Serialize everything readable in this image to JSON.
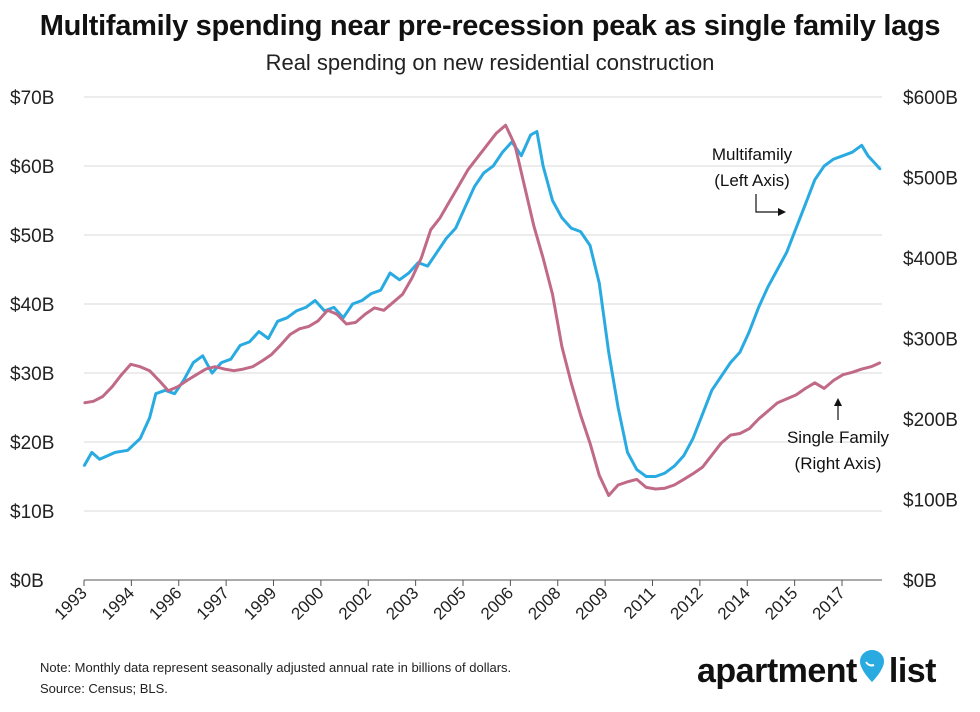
{
  "title": "Multifamily spending near pre-recession peak as single family lags",
  "subtitle": "Real spending on new residential construction",
  "note": "Note: Monthly data represent seasonally adjusted annual rate in billions of dollars.",
  "source": "Source: Census; BLS.",
  "logo": {
    "text_left": "apartment",
    "text_right": "list",
    "pin_color": "#29abe2"
  },
  "colors": {
    "multifamily": "#29abe2",
    "single_family": "#c06a88",
    "grid": "#d9d9d9",
    "axis": "#555555"
  },
  "chart_data": {
    "type": "line",
    "x_tick_labels": [
      "1993",
      "1994",
      "1996",
      "1997",
      "1999",
      "2000",
      "2002",
      "2003",
      "2005",
      "2006",
      "2008",
      "2009",
      "2011",
      "2012",
      "2014",
      "2015",
      "2017"
    ],
    "left_axis": {
      "ylim": [
        0,
        70
      ],
      "ticks": [
        0,
        10,
        20,
        30,
        40,
        50,
        60,
        70
      ],
      "tick_labels": [
        "$0B",
        "$10B",
        "$20B",
        "$30B",
        "$40B",
        "$50B",
        "$60B",
        "$70B"
      ]
    },
    "right_axis": {
      "ylim": [
        0,
        600
      ],
      "ticks": [
        0,
        100,
        200,
        300,
        400,
        500,
        600
      ],
      "tick_labels": [
        "$0B",
        "$100B",
        "$200B",
        "$300B",
        "$400B",
        "$500B",
        "$600B"
      ]
    },
    "grid": "horizontal",
    "annotations": [
      {
        "text_lines": [
          "Multifamily",
          "(Left Axis)"
        ],
        "target_series": "multifamily"
      },
      {
        "text_lines": [
          "Single Family",
          "(Right Axis)"
        ],
        "target_series": "single_family"
      }
    ],
    "series": [
      {
        "name": "Multifamily",
        "key": "multifamily",
        "axis": "left",
        "points": [
          [
            1993.0,
            16.5
          ],
          [
            1993.25,
            18.5
          ],
          [
            1993.5,
            17.5
          ],
          [
            1994.0,
            18.5
          ],
          [
            1994.4,
            18.8
          ],
          [
            1994.8,
            20.5
          ],
          [
            1995.1,
            23.5
          ],
          [
            1995.3,
            27.0
          ],
          [
            1995.6,
            27.5
          ],
          [
            1995.9,
            27.0
          ],
          [
            1996.2,
            29.0
          ],
          [
            1996.5,
            31.5
          ],
          [
            1996.8,
            32.5
          ],
          [
            1997.1,
            30.0
          ],
          [
            1997.4,
            31.5
          ],
          [
            1997.7,
            32.0
          ],
          [
            1998.0,
            34.0
          ],
          [
            1998.3,
            34.5
          ],
          [
            1998.6,
            36.0
          ],
          [
            1998.9,
            35.0
          ],
          [
            1999.2,
            37.5
          ],
          [
            1999.5,
            38.0
          ],
          [
            1999.8,
            39.0
          ],
          [
            2000.1,
            39.5
          ],
          [
            2000.4,
            40.5
          ],
          [
            2000.7,
            39.0
          ],
          [
            2001.0,
            39.5
          ],
          [
            2001.3,
            38.0
          ],
          [
            2001.6,
            40.0
          ],
          [
            2001.9,
            40.5
          ],
          [
            2002.2,
            41.5
          ],
          [
            2002.5,
            42.0
          ],
          [
            2002.8,
            44.5
          ],
          [
            2003.1,
            43.5
          ],
          [
            2003.4,
            44.5
          ],
          [
            2003.7,
            46.0
          ],
          [
            2004.0,
            45.5
          ],
          [
            2004.3,
            47.5
          ],
          [
            2004.6,
            49.5
          ],
          [
            2004.9,
            51.0
          ],
          [
            2005.2,
            54.0
          ],
          [
            2005.5,
            57.0
          ],
          [
            2005.8,
            59.0
          ],
          [
            2006.1,
            60.0
          ],
          [
            2006.4,
            62.0
          ],
          [
            2006.7,
            63.5
          ],
          [
            2007.0,
            61.5
          ],
          [
            2007.3,
            64.5
          ],
          [
            2007.5,
            65.0
          ],
          [
            2007.7,
            60.0
          ],
          [
            2008.0,
            55.0
          ],
          [
            2008.3,
            52.5
          ],
          [
            2008.6,
            51.0
          ],
          [
            2008.9,
            50.5
          ],
          [
            2009.2,
            48.5
          ],
          [
            2009.5,
            43.0
          ],
          [
            2009.8,
            33.0
          ],
          [
            2010.1,
            25.0
          ],
          [
            2010.4,
            18.5
          ],
          [
            2010.7,
            16.0
          ],
          [
            2011.0,
            15.0
          ],
          [
            2011.3,
            15.0
          ],
          [
            2011.6,
            15.5
          ],
          [
            2011.9,
            16.5
          ],
          [
            2012.2,
            18.0
          ],
          [
            2012.5,
            20.5
          ],
          [
            2012.8,
            24.0
          ],
          [
            2013.1,
            27.5
          ],
          [
            2013.4,
            29.5
          ],
          [
            2013.7,
            31.5
          ],
          [
            2014.0,
            33.0
          ],
          [
            2014.3,
            36.0
          ],
          [
            2014.6,
            39.5
          ],
          [
            2014.9,
            42.5
          ],
          [
            2015.2,
            45.0
          ],
          [
            2015.5,
            47.5
          ],
          [
            2015.8,
            51.0
          ],
          [
            2016.1,
            54.5
          ],
          [
            2016.4,
            58.0
          ],
          [
            2016.7,
            60.0
          ],
          [
            2017.0,
            61.0
          ],
          [
            2017.3,
            61.5
          ],
          [
            2017.6,
            62.0
          ],
          [
            2017.9,
            63.0
          ],
          [
            2018.1,
            61.5
          ],
          [
            2018.3,
            60.5
          ],
          [
            2018.5,
            59.5
          ]
        ]
      },
      {
        "name": "Single Family",
        "key": "single_family",
        "axis": "right",
        "points": [
          [
            1993.0,
            220
          ],
          [
            1993.3,
            222
          ],
          [
            1993.6,
            228
          ],
          [
            1993.9,
            240
          ],
          [
            1994.2,
            255
          ],
          [
            1994.5,
            268
          ],
          [
            1994.8,
            265
          ],
          [
            1995.1,
            260
          ],
          [
            1995.4,
            248
          ],
          [
            1995.7,
            235
          ],
          [
            1996.0,
            240
          ],
          [
            1996.3,
            248
          ],
          [
            1996.6,
            255
          ],
          [
            1996.9,
            262
          ],
          [
            1997.2,
            265
          ],
          [
            1997.5,
            262
          ],
          [
            1997.8,
            260
          ],
          [
            1998.1,
            262
          ],
          [
            1998.4,
            265
          ],
          [
            1998.7,
            272
          ],
          [
            1999.0,
            280
          ],
          [
            1999.3,
            292
          ],
          [
            1999.6,
            305
          ],
          [
            1999.9,
            312
          ],
          [
            2000.2,
            315
          ],
          [
            2000.5,
            322
          ],
          [
            2000.8,
            335
          ],
          [
            2001.1,
            330
          ],
          [
            2001.4,
            318
          ],
          [
            2001.7,
            320
          ],
          [
            2002.0,
            330
          ],
          [
            2002.3,
            338
          ],
          [
            2002.6,
            335
          ],
          [
            2002.9,
            345
          ],
          [
            2003.2,
            355
          ],
          [
            2003.5,
            375
          ],
          [
            2003.8,
            400
          ],
          [
            2004.1,
            435
          ],
          [
            2004.4,
            450
          ],
          [
            2004.7,
            470
          ],
          [
            2005.0,
            490
          ],
          [
            2005.3,
            510
          ],
          [
            2005.6,
            525
          ],
          [
            2005.9,
            540
          ],
          [
            2006.2,
            555
          ],
          [
            2006.5,
            565
          ],
          [
            2006.8,
            540
          ],
          [
            2007.1,
            490
          ],
          [
            2007.4,
            440
          ],
          [
            2007.7,
            400
          ],
          [
            2008.0,
            355
          ],
          [
            2008.3,
            290
          ],
          [
            2008.6,
            245
          ],
          [
            2008.9,
            205
          ],
          [
            2009.2,
            170
          ],
          [
            2009.5,
            130
          ],
          [
            2009.8,
            105
          ],
          [
            2010.1,
            118
          ],
          [
            2010.4,
            122
          ],
          [
            2010.7,
            125
          ],
          [
            2011.0,
            115
          ],
          [
            2011.3,
            113
          ],
          [
            2011.6,
            114
          ],
          [
            2011.9,
            118
          ],
          [
            2012.2,
            125
          ],
          [
            2012.5,
            132
          ],
          [
            2012.8,
            140
          ],
          [
            2013.1,
            155
          ],
          [
            2013.4,
            170
          ],
          [
            2013.7,
            180
          ],
          [
            2014.0,
            182
          ],
          [
            2014.3,
            188
          ],
          [
            2014.6,
            200
          ],
          [
            2014.9,
            210
          ],
          [
            2015.2,
            220
          ],
          [
            2015.5,
            225
          ],
          [
            2015.8,
            230
          ],
          [
            2016.1,
            238
          ],
          [
            2016.4,
            245
          ],
          [
            2016.7,
            238
          ],
          [
            2017.0,
            248
          ],
          [
            2017.3,
            255
          ],
          [
            2017.6,
            258
          ],
          [
            2017.9,
            262
          ],
          [
            2018.2,
            265
          ],
          [
            2018.5,
            270
          ]
        ]
      }
    ]
  }
}
